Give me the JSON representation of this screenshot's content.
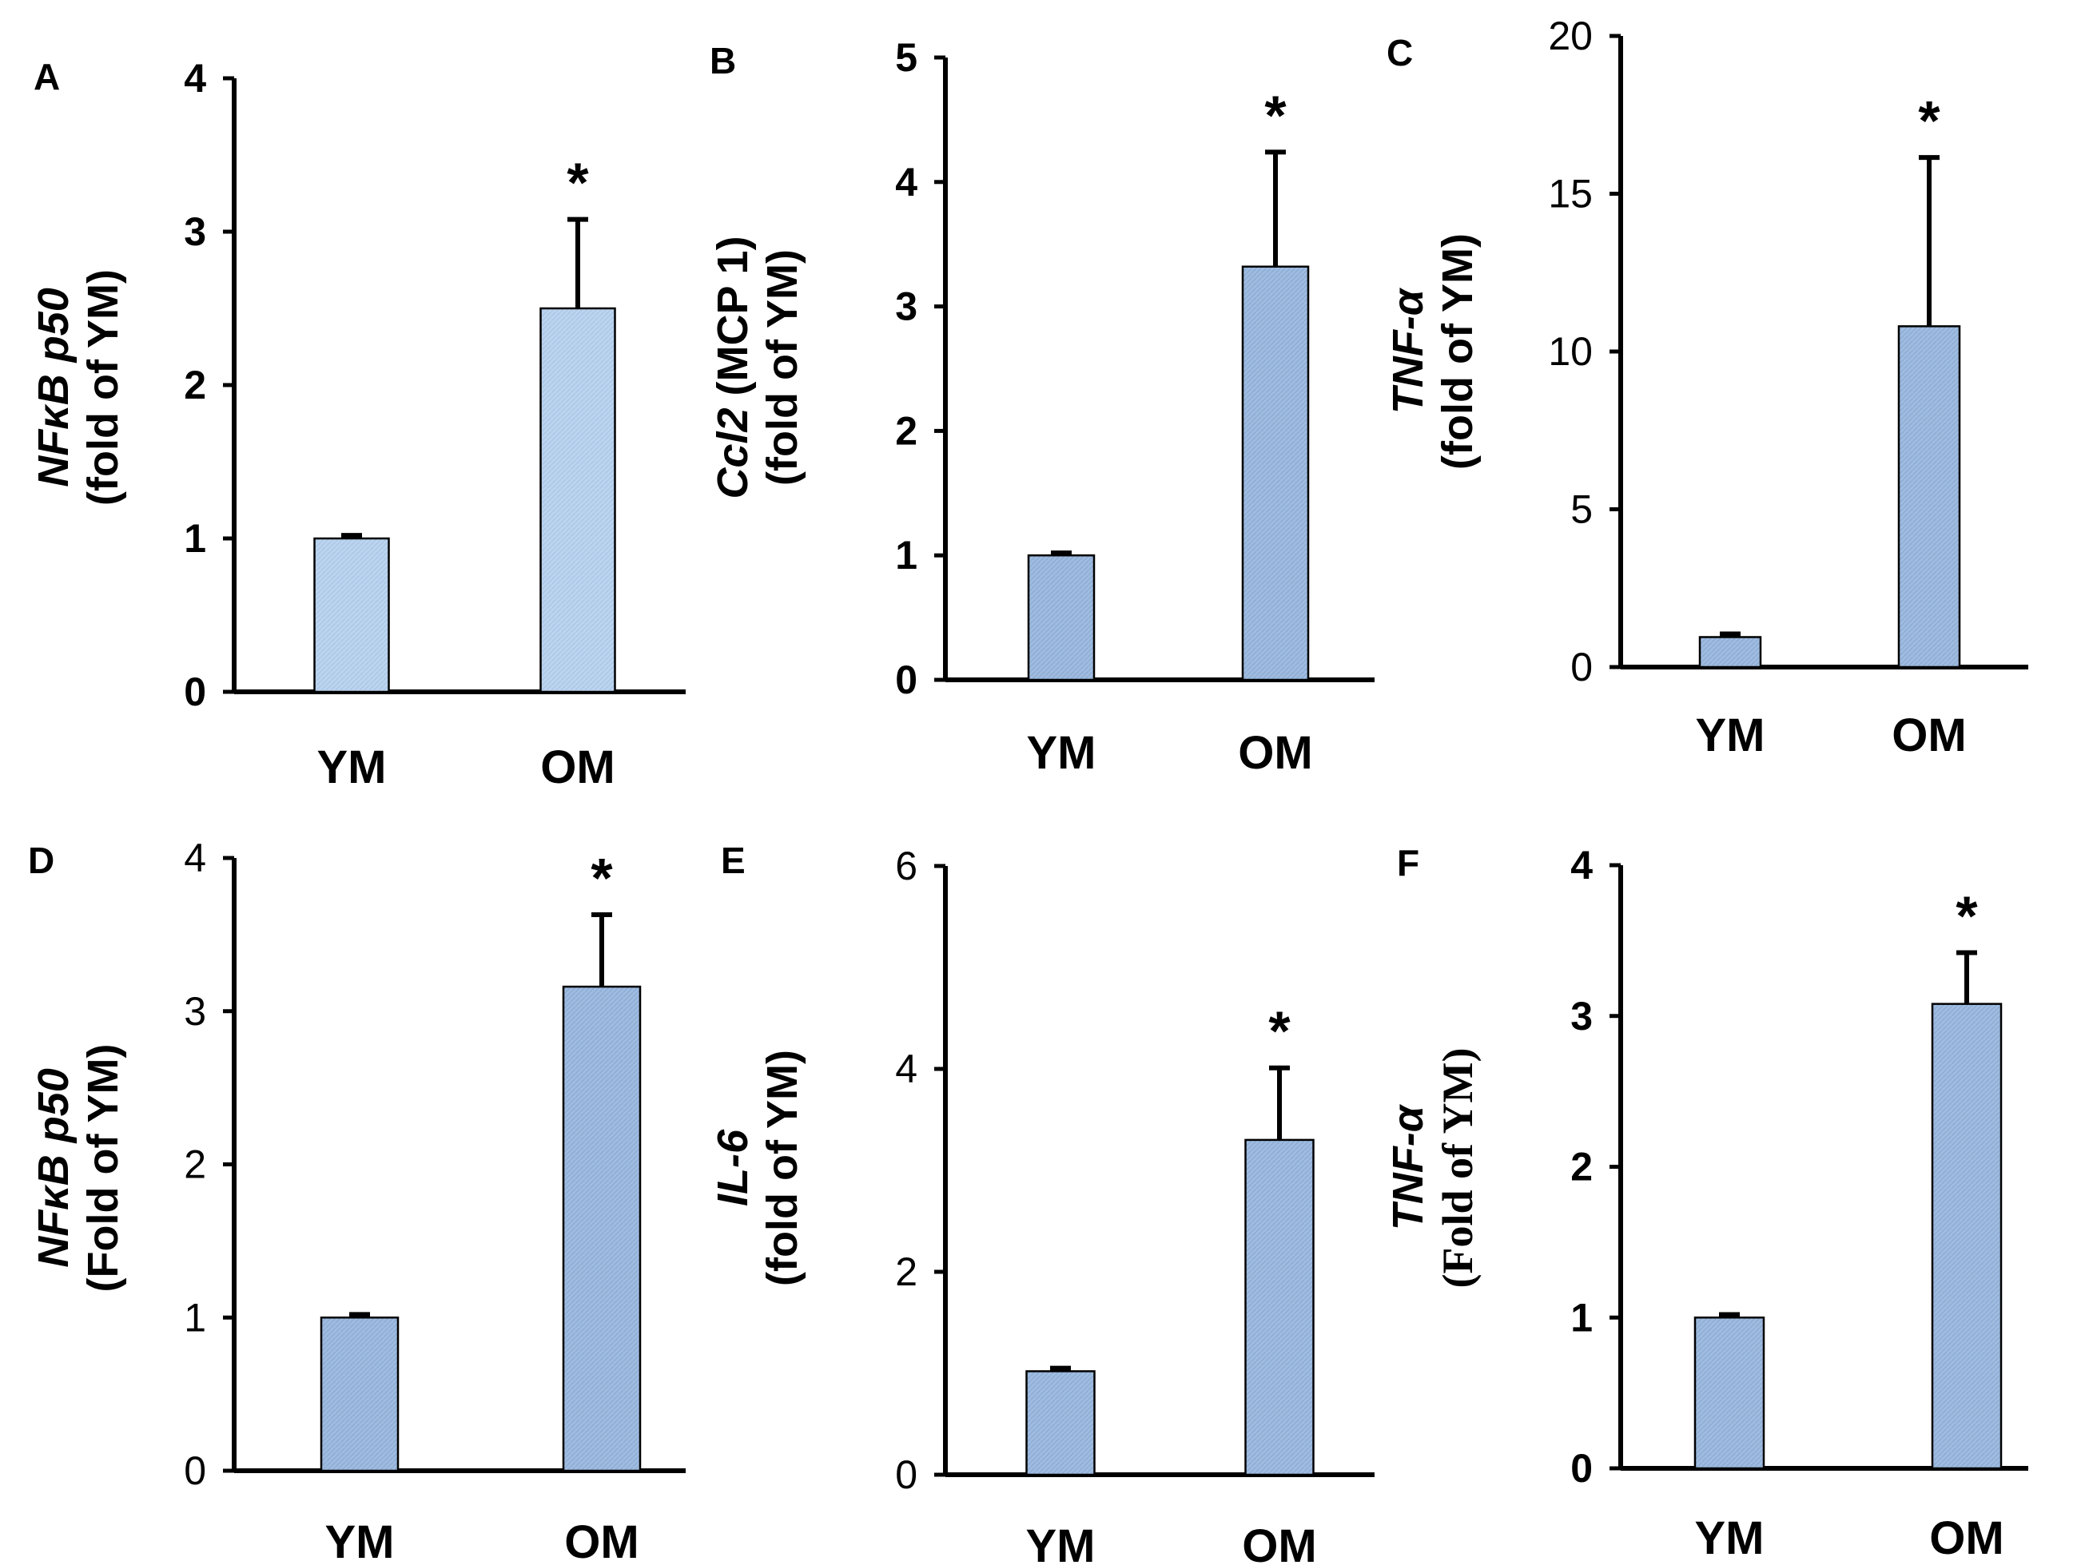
{
  "colors": {
    "bar_fill": "#9fbce0",
    "bar_fill_light": "#bcd4ee",
    "bar_stroke": "#000000",
    "axis": "#000000"
  },
  "chart_data": [
    {
      "panel": "A",
      "type": "bar",
      "categories": [
        "YM",
        "OM"
      ],
      "values": [
        1.0,
        2.5
      ],
      "errors": [
        0.02,
        0.58
      ],
      "significance": [
        "",
        "*"
      ],
      "ylabel_gene": "NFκB p50",
      "ylabel_gene_suffix": "",
      "ylabel_units": "(fold of YM)",
      "ylim": [
        0,
        4
      ],
      "yticks": [
        "0",
        "1",
        "2",
        "3",
        "4"
      ],
      "light": true,
      "bold_ticks": true
    },
    {
      "panel": "B",
      "type": "bar",
      "categories": [
        "YM",
        "OM"
      ],
      "values": [
        1.0,
        3.32
      ],
      "errors": [
        0.02,
        0.92
      ],
      "significance": [
        "",
        "*"
      ],
      "ylabel_gene": "Ccl2",
      "ylabel_gene_suffix": " (MCP 1)",
      "ylabel_units": "(fold of YM)",
      "ylim": [
        0,
        5
      ],
      "yticks": [
        "0",
        "1",
        "2",
        "3",
        "4",
        "5"
      ],
      "light": false,
      "bold_ticks": true
    },
    {
      "panel": "C",
      "type": "bar",
      "categories": [
        "YM",
        "OM"
      ],
      "values": [
        0.95,
        10.8
      ],
      "errors": [
        0.1,
        5.35
      ],
      "significance": [
        "",
        "*"
      ],
      "ylabel_gene": "TNF-α",
      "ylabel_gene_suffix": "",
      "ylabel_units": "(fold of YM)",
      "ylim": [
        0,
        20
      ],
      "yticks": [
        "0",
        "5",
        "10",
        "15",
        "20"
      ],
      "light": false,
      "bold_ticks": false
    },
    {
      "panel": "D",
      "type": "bar",
      "categories": [
        "YM",
        "OM"
      ],
      "values": [
        1.0,
        3.16
      ],
      "errors": [
        0.02,
        0.47
      ],
      "significance": [
        "",
        "*"
      ],
      "ylabel_gene": "NFκB p50",
      "ylabel_gene_suffix": "",
      "ylabel_units": "(Fold of YM)",
      "ylim": [
        0,
        4
      ],
      "yticks": [
        "0",
        "1",
        "2",
        "3",
        "4"
      ],
      "light": false,
      "bold_ticks": false
    },
    {
      "panel": "E",
      "type": "bar",
      "categories": [
        "YM",
        "OM"
      ],
      "values": [
        1.02,
        3.3
      ],
      "errors": [
        0.03,
        0.71
      ],
      "significance": [
        "",
        "*"
      ],
      "ylabel_gene": "IL-6",
      "ylabel_gene_suffix": "",
      "ylabel_units": "(fold of YM)",
      "ylim": [
        0,
        6
      ],
      "yticks": [
        "0",
        "2",
        "4",
        "6"
      ],
      "light": false,
      "bold_ticks": false
    },
    {
      "panel": "F",
      "type": "bar",
      "categories": [
        "YM",
        "OM"
      ],
      "values": [
        1.0,
        3.08
      ],
      "errors": [
        0.02,
        0.34
      ],
      "significance": [
        "",
        "*"
      ],
      "ylabel_gene": "TNF-α",
      "ylabel_gene_suffix": "",
      "ylabel_units": "(Fold  of YM)",
      "ylim": [
        0,
        4
      ],
      "yticks": [
        "0",
        "1",
        "2",
        "3",
        "4"
      ],
      "light": false,
      "bold_ticks": true
    }
  ]
}
